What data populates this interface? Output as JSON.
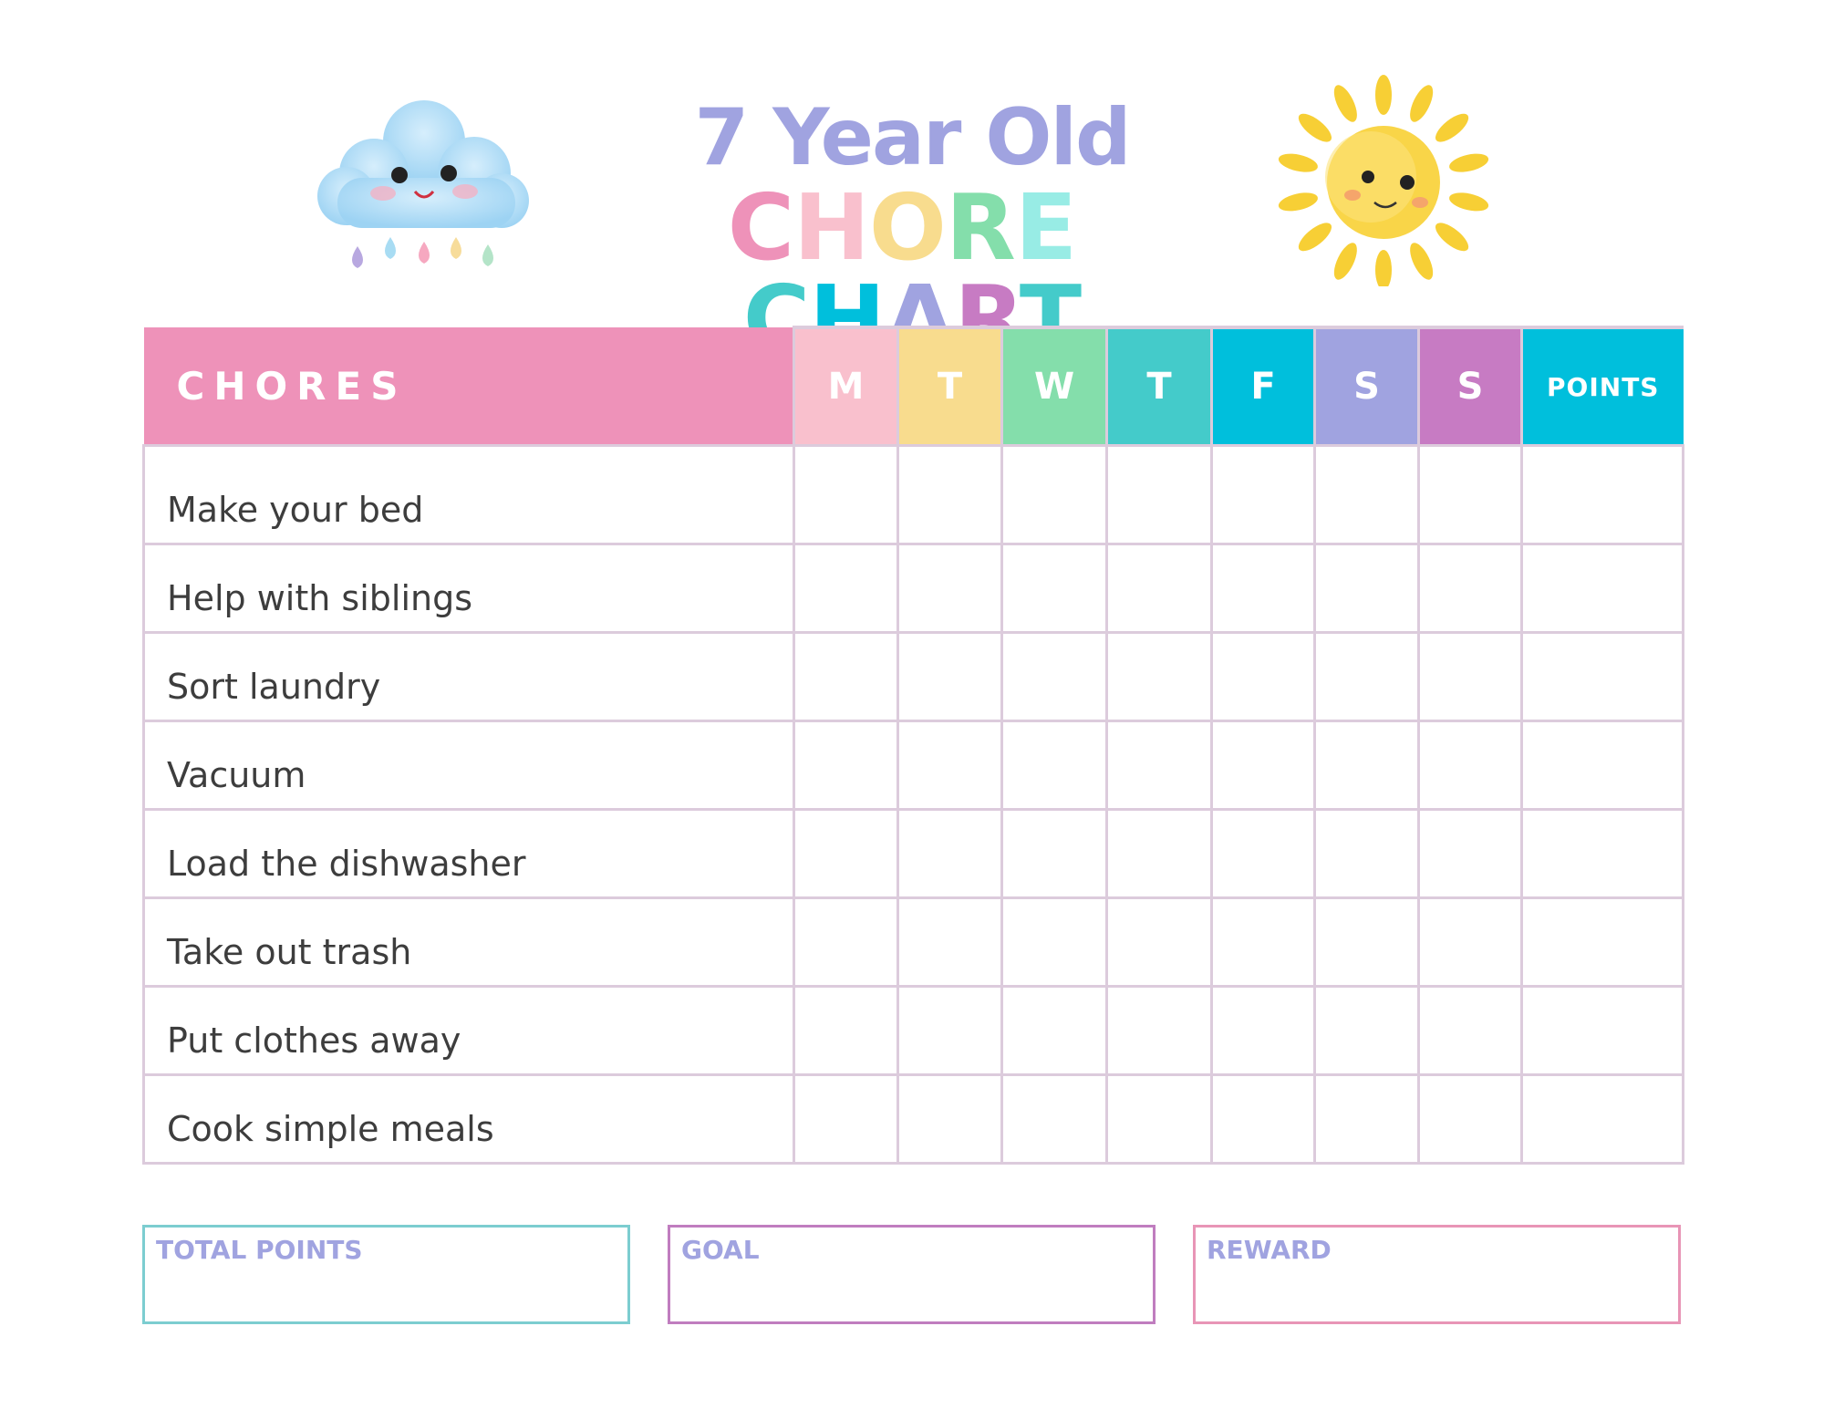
{
  "title": {
    "line1": "7 Year Old",
    "line1_color": "#a0a3e0",
    "line2_letters": [
      {
        "char": "C",
        "color": "#ee92b9"
      },
      {
        "char": "H",
        "color": "#f9c0cd"
      },
      {
        "char": "O",
        "color": "#f8dc8e"
      },
      {
        "char": "R",
        "color": "#84deab"
      },
      {
        "char": "E",
        "color": "#98ece5"
      },
      {
        "char": " ",
        "color": "#ffffff"
      },
      {
        "char": "C",
        "color": "#44cbca"
      },
      {
        "char": "H",
        "color": "#00bfdc"
      },
      {
        "char": "A",
        "color": "#a0a3e0"
      },
      {
        "char": "R",
        "color": "#c77bc3"
      },
      {
        "char": "T",
        "color": "#44cbca"
      }
    ]
  },
  "illustrations": {
    "left": "cloud-icon",
    "right": "sun-icon"
  },
  "table": {
    "header": {
      "chores": "CHORES",
      "points": "POINTS",
      "chores_color": "#ee92b9"
    },
    "days": [
      {
        "label": "M",
        "color": "#f9c0cd"
      },
      {
        "label": "T",
        "color": "#f8dc8e"
      },
      {
        "label": "W",
        "color": "#84deab"
      },
      {
        "label": "T",
        "color": "#44cbca"
      },
      {
        "label": "F",
        "color": "#00bfdc"
      },
      {
        "label": "S",
        "color": "#a0a3e0"
      },
      {
        "label": "S",
        "color": "#c77bc3"
      }
    ],
    "points_color": "#00bfdc",
    "chores": [
      "Make your bed",
      "Help with siblings",
      "Sort laundry",
      "Vacuum",
      "Load the dishwasher",
      "Take out trash",
      "Put clothes away",
      "Cook simple meals"
    ]
  },
  "footer": {
    "total_points": {
      "label": "TOTAL POINTS",
      "color": "#7ccdd0"
    },
    "goal": {
      "label": "GOAL",
      "color": "#c07dbf"
    },
    "reward": {
      "label": "REWARD",
      "color": "#e895b6"
    }
  }
}
